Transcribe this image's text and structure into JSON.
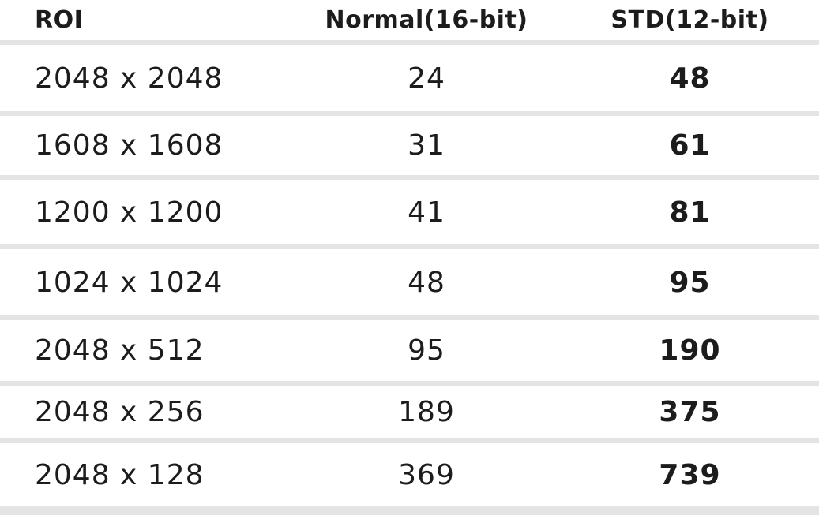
{
  "table": {
    "columns": [
      {
        "key": "roi",
        "label": "ROI"
      },
      {
        "key": "normal",
        "label": "Normal(16-bit)"
      },
      {
        "key": "std",
        "label": "STD(12-bit)"
      }
    ],
    "rows": [
      {
        "roi": "2048 x 2048",
        "normal": "24",
        "std": "48"
      },
      {
        "roi": "1608 x 1608",
        "normal": "31",
        "std": "61"
      },
      {
        "roi": "1200 x 1200",
        "normal": "41",
        "std": "81"
      },
      {
        "roi": "1024 x 1024",
        "normal": "48",
        "std": "95"
      },
      {
        "roi": "2048 x 512",
        "normal": "95",
        "std": "190"
      },
      {
        "roi": "2048 x 256",
        "normal": "189",
        "std": "375"
      },
      {
        "roi": "2048 x 128",
        "normal": "369",
        "std": "739"
      }
    ],
    "colors": {
      "text": "#1c1c1c",
      "divider": "#e4e4e4",
      "background": "#ffffff"
    }
  }
}
